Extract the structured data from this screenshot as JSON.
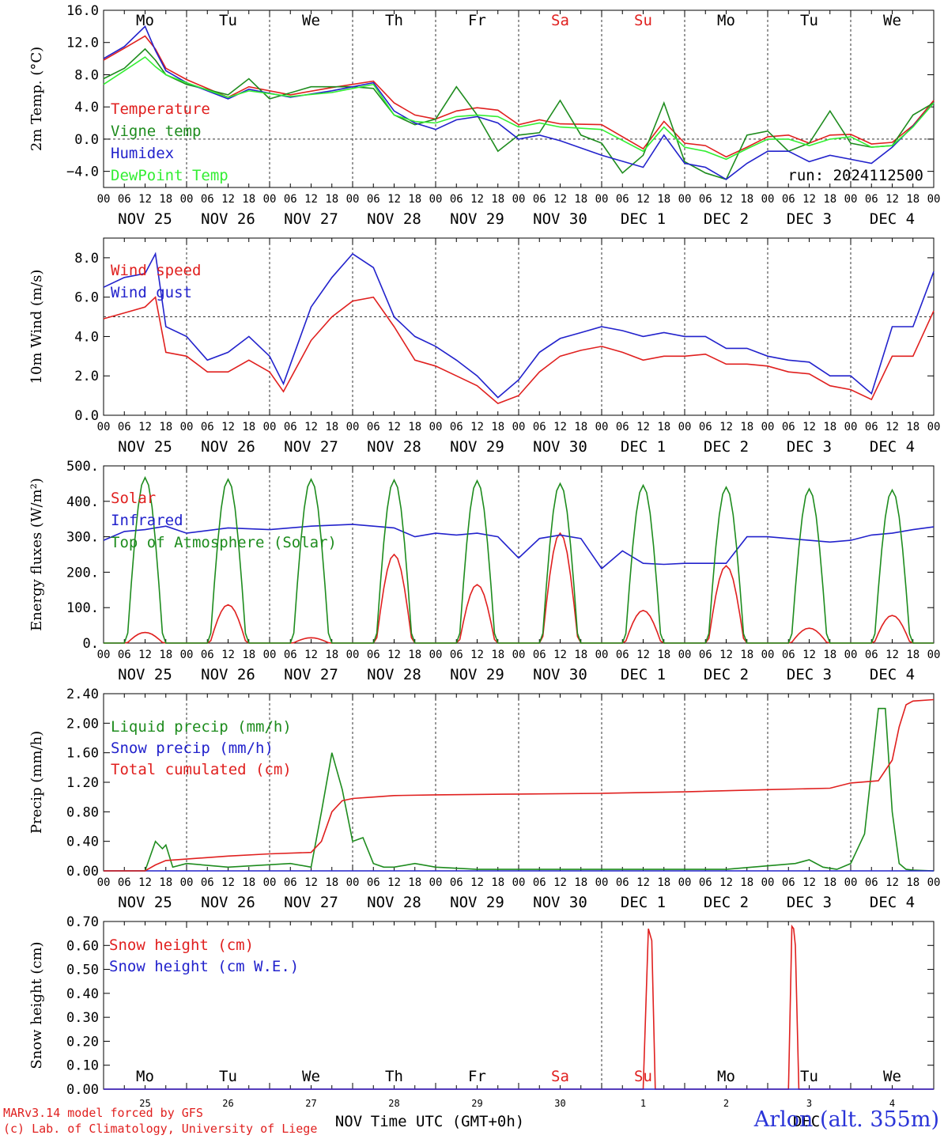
{
  "run_label": "run: 2024112500",
  "day_names": [
    "Mo",
    "Tu",
    "We",
    "Th",
    "Fr",
    "Sa",
    "Su",
    "Mo",
    "Tu",
    "We"
  ],
  "weekend_day_color": "#e0201f",
  "date_labels": [
    "NOV 25",
    "NOV 26",
    "NOV 27",
    "NOV 28",
    "NOV 29",
    "NOV 30",
    "DEC  1",
    "DEC  2",
    "DEC  3",
    "DEC  4"
  ],
  "hour_tick_labels": [
    "00",
    "06",
    "12",
    "18"
  ],
  "final_hour_label": "00",
  "bottom_day_numbers": [
    "25",
    "26",
    "27",
    "28",
    "29",
    "30",
    "1",
    "2",
    "3",
    "4"
  ],
  "bottom_month_labels": [
    "NOV",
    "DEC"
  ],
  "bottom_xlabel": "Time UTC (GMT+0h)",
  "footer": {
    "credit_line_1": "MARv3.14 model forced by GFS",
    "credit_line_2": "(c) Lab. of Climatology, University of Liege",
    "station": "Arlon (alt. 355m)"
  },
  "chart_data": [
    {
      "type": "line",
      "ylabel": "2m Temp. (°C)",
      "ylim": [
        -6,
        16
      ],
      "yticks": [
        -4,
        0,
        4,
        8,
        12,
        16
      ],
      "ytick_labels": [
        "−4.0",
        "0.0",
        "4.0",
        "8.0",
        "12.0",
        "16.0"
      ],
      "reference_line": 0,
      "x_unit": "hours since 00 UTC NOV 25",
      "series": [
        {
          "name": "Temperature",
          "color": "#e0201f",
          "x": [
            0,
            6,
            12,
            15,
            18,
            24,
            36,
            42,
            54,
            66,
            78,
            84,
            90,
            96,
            102,
            108,
            114,
            120,
            126,
            132,
            144,
            156,
            162,
            168,
            174,
            180,
            186,
            192,
            198,
            204,
            210,
            216,
            222,
            228,
            234,
            240
          ],
          "y": [
            9.8,
            11.3,
            12.8,
            11.2,
            8.8,
            7.4,
            5.2,
            6.5,
            5.5,
            6.4,
            7.2,
            4.5,
            3.0,
            2.5,
            3.5,
            3.9,
            3.6,
            1.8,
            2.4,
            1.9,
            1.8,
            -1.2,
            2.2,
            -0.5,
            -0.8,
            -2.2,
            -1.0,
            0.3,
            0.5,
            -0.5,
            0.5,
            0.6,
            -0.6,
            -0.4,
            1.7,
            4.8
          ]
        },
        {
          "name": "Vigne temp",
          "color": "#1e8c1e",
          "x": [
            0,
            6,
            12,
            15,
            18,
            24,
            36,
            42,
            48,
            60,
            72,
            78,
            84,
            90,
            96,
            102,
            108,
            114,
            120,
            126,
            132,
            138,
            144,
            150,
            156,
            162,
            168,
            174,
            180,
            186,
            192,
            198,
            204,
            210,
            216,
            222,
            228,
            234,
            240
          ],
          "y": [
            7.5,
            8.8,
            11.2,
            9.8,
            8.0,
            6.8,
            5.5,
            7.5,
            5.0,
            6.5,
            6.5,
            6.3,
            3.0,
            1.8,
            2.5,
            6.5,
            3.0,
            -1.5,
            0.5,
            0.8,
            4.8,
            0.5,
            -0.5,
            -4.2,
            -2.0,
            4.5,
            -2.8,
            -4.2,
            -5.0,
            0.5,
            1.0,
            -1.5,
            -0.5,
            3.5,
            -0.5,
            -1.0,
            -0.8,
            3.0,
            4.5
          ]
        },
        {
          "name": "Humidex",
          "color": "#2222cc",
          "x": [
            0,
            6,
            12,
            15,
            18,
            24,
            36,
            42,
            54,
            66,
            78,
            84,
            90,
            96,
            102,
            108,
            114,
            120,
            126,
            132,
            144,
            156,
            162,
            168,
            174,
            180,
            186,
            192,
            198,
            204,
            210,
            216,
            222,
            228,
            234,
            240
          ],
          "y": [
            10.0,
            11.5,
            14.0,
            11.0,
            8.5,
            7.0,
            5.0,
            6.2,
            5.2,
            6.0,
            7.0,
            3.5,
            2.0,
            1.2,
            2.4,
            2.8,
            2.0,
            0.0,
            0.5,
            -0.2,
            -2.0,
            -3.5,
            0.5,
            -3.0,
            -3.5,
            -5.0,
            -3.0,
            -1.5,
            -1.5,
            -2.8,
            -2.0,
            -2.5,
            -3.0,
            -1.0,
            1.6,
            4.5
          ]
        },
        {
          "name": "DewPoint Temp",
          "color": "#33ee33",
          "x": [
            0,
            6,
            12,
            15,
            18,
            24,
            36,
            42,
            54,
            66,
            78,
            84,
            90,
            96,
            102,
            108,
            114,
            120,
            126,
            132,
            144,
            156,
            162,
            168,
            174,
            180,
            186,
            192,
            198,
            204,
            210,
            216,
            222,
            228,
            234,
            240
          ],
          "y": [
            6.8,
            8.5,
            10.2,
            9.0,
            8.0,
            7.0,
            5.2,
            6.0,
            5.3,
            5.8,
            6.8,
            3.0,
            2.2,
            2.0,
            2.8,
            3.0,
            2.8,
            1.5,
            2.0,
            1.5,
            1.2,
            -1.5,
            1.5,
            -1.0,
            -1.5,
            -2.5,
            -1.2,
            0.0,
            0.0,
            -0.8,
            0.0,
            0.3,
            -1.0,
            -0.8,
            1.5,
            4.5
          ]
        }
      ]
    },
    {
      "type": "line",
      "ylabel": "10m Wind (m/s)",
      "ylim": [
        0,
        9
      ],
      "yticks": [
        0,
        2,
        4,
        6,
        8
      ],
      "ytick_labels": [
        "0.0",
        "2.0",
        "4.0",
        "6.0",
        "8.0"
      ],
      "reference_line": 5,
      "x_unit": "hours since 00 UTC NOV 25",
      "series": [
        {
          "name": "Wind speed",
          "color": "#e0201f",
          "x": [
            0,
            6,
            12,
            15,
            18,
            24,
            30,
            36,
            42,
            48,
            52,
            60,
            66,
            72,
            78,
            84,
            90,
            96,
            102,
            108,
            114,
            120,
            126,
            132,
            138,
            144,
            150,
            156,
            162,
            168,
            174,
            180,
            186,
            192,
            198,
            204,
            210,
            216,
            222,
            228,
            234,
            240
          ],
          "y": [
            4.9,
            5.2,
            5.5,
            6.0,
            3.2,
            3.0,
            2.2,
            2.2,
            2.8,
            2.2,
            1.2,
            3.8,
            5.0,
            5.8,
            6.0,
            4.5,
            2.8,
            2.5,
            2.0,
            1.5,
            0.6,
            1.0,
            2.2,
            3.0,
            3.3,
            3.5,
            3.2,
            2.8,
            3.0,
            3.0,
            3.1,
            2.6,
            2.6,
            2.5,
            2.2,
            2.1,
            1.5,
            1.3,
            0.8,
            3.0,
            3.0,
            5.3
          ]
        },
        {
          "name": "Wind gust",
          "color": "#2222cc",
          "x": [
            0,
            6,
            12,
            15,
            18,
            24,
            30,
            36,
            42,
            48,
            52,
            60,
            66,
            72,
            78,
            84,
            90,
            96,
            102,
            108,
            114,
            120,
            126,
            132,
            138,
            144,
            150,
            156,
            162,
            168,
            174,
            180,
            186,
            192,
            198,
            204,
            210,
            216,
            222,
            228,
            234,
            240
          ],
          "y": [
            6.5,
            7.0,
            7.2,
            8.2,
            4.5,
            4.0,
            2.8,
            3.2,
            4.0,
            3.0,
            1.6,
            5.5,
            7.0,
            8.2,
            7.5,
            5.0,
            4.0,
            3.5,
            2.8,
            2.0,
            0.9,
            1.8,
            3.2,
            3.9,
            4.2,
            4.5,
            4.3,
            4.0,
            4.2,
            4.0,
            4.0,
            3.4,
            3.4,
            3.0,
            2.8,
            2.7,
            2.0,
            2.0,
            1.1,
            4.5,
            4.5,
            7.3
          ]
        }
      ]
    },
    {
      "type": "line",
      "ylabel": "Energy fluxes (W/m²)",
      "ylim": [
        0,
        500
      ],
      "yticks": [
        0,
        100,
        200,
        300,
        400,
        500
      ],
      "ytick_labels": [
        "0.",
        "100.",
        "200.",
        "300.",
        "400.",
        "500."
      ],
      "x_unit": "hours since 00 UTC NOV 25",
      "series": [
        {
          "name": "Solar",
          "color": "#e0201f",
          "day_peaks": [
            30,
            108,
            15,
            250,
            165,
            310,
            92,
            218,
            42,
            78
          ]
        },
        {
          "name": "Infrared",
          "color": "#2222cc",
          "x": [
            0,
            6,
            12,
            18,
            24,
            36,
            48,
            60,
            72,
            84,
            90,
            96,
            102,
            108,
            114,
            120,
            126,
            132,
            138,
            144,
            150,
            156,
            162,
            168,
            174,
            180,
            186,
            192,
            198,
            204,
            210,
            216,
            222,
            228,
            234,
            240
          ],
          "y": [
            290,
            315,
            320,
            330,
            310,
            325,
            320,
            330,
            335,
            325,
            300,
            310,
            305,
            310,
            300,
            240,
            295,
            305,
            295,
            210,
            260,
            225,
            222,
            225,
            225,
            225,
            300,
            300,
            295,
            290,
            285,
            290,
            305,
            310,
            320,
            328
          ]
        },
        {
          "name": "Top of Atmosphere (Solar)",
          "color": "#1e8c1e",
          "day_peaks": [
            467,
            462,
            462,
            460,
            458,
            450,
            445,
            440,
            435,
            432
          ]
        }
      ]
    },
    {
      "type": "line",
      "ylabel": "Precip (mm/h)",
      "ylim": [
        0,
        2.4
      ],
      "yticks": [
        0,
        0.4,
        0.8,
        1.2,
        1.6,
        2.0,
        2.4
      ],
      "ytick_labels": [
        "0.00",
        "0.40",
        "0.80",
        "1.20",
        "1.60",
        "2.00",
        "2.40"
      ],
      "x_unit": "hours since 00 UTC NOV 25",
      "series": [
        {
          "name": "Liquid precip (mm/h)",
          "color": "#1e8c1e",
          "x": [
            0,
            12,
            15,
            17,
            18,
            20,
            24,
            36,
            54,
            60,
            63,
            66,
            69,
            72,
            75,
            78,
            81,
            84,
            90,
            96,
            108,
            120,
            180,
            200,
            204,
            208,
            212,
            216,
            220,
            224,
            226,
            228,
            230,
            232,
            234,
            240
          ],
          "y": [
            0,
            0,
            0.4,
            0.3,
            0.35,
            0.05,
            0.1,
            0.05,
            0.1,
            0.05,
            0.8,
            1.6,
            1.1,
            0.4,
            0.45,
            0.1,
            0.05,
            0.05,
            0.1,
            0.05,
            0.02,
            0.02,
            0.02,
            0.1,
            0.15,
            0.05,
            0.02,
            0.1,
            0.5,
            2.2,
            2.2,
            0.8,
            0.1,
            0.02,
            0.01,
            0
          ]
        },
        {
          "name": "Snow precip (mm/h)",
          "color": "#2222cc",
          "x": [
            0,
            240
          ],
          "y": [
            0,
            0
          ]
        },
        {
          "name": "Total cumulated (cm)",
          "color": "#e0201f",
          "x": [
            0,
            12,
            15,
            18,
            24,
            36,
            48,
            60,
            63,
            66,
            69,
            72,
            78,
            84,
            96,
            120,
            144,
            168,
            192,
            210,
            216,
            224,
            228,
            230,
            232,
            234,
            240
          ],
          "y": [
            0,
            0,
            0.08,
            0.14,
            0.16,
            0.2,
            0.23,
            0.25,
            0.4,
            0.8,
            0.95,
            0.98,
            1.0,
            1.02,
            1.03,
            1.04,
            1.05,
            1.07,
            1.1,
            1.12,
            1.19,
            1.22,
            1.5,
            1.95,
            2.25,
            2.3,
            2.32
          ]
        }
      ]
    },
    {
      "type": "line",
      "ylabel": "Snow height (cm)",
      "ylim": [
        0,
        0.7
      ],
      "yticks": [
        0,
        0.1,
        0.2,
        0.3,
        0.4,
        0.5,
        0.6,
        0.7
      ],
      "ytick_labels": [
        "0.00",
        "0.10",
        "0.20",
        "0.30",
        "0.40",
        "0.50",
        "0.60",
        "0.70"
      ],
      "x_unit": "hours since 00 UTC NOV 25",
      "series": [
        {
          "name": "Snow height (cm)",
          "color": "#e0201f",
          "x": [
            0,
            156,
            157.5,
            158.5,
            159.5,
            198,
            199,
            199.5,
            200,
            201,
            240
          ],
          "y": [
            0,
            0,
            0.67,
            0.62,
            0,
            0,
            0.68,
            0.67,
            0.6,
            0,
            0
          ]
        },
        {
          "name": "Snow height (cm W.E.)",
          "color": "#2222cc",
          "x": [
            0,
            240
          ],
          "y": [
            0,
            0
          ]
        }
      ]
    }
  ]
}
